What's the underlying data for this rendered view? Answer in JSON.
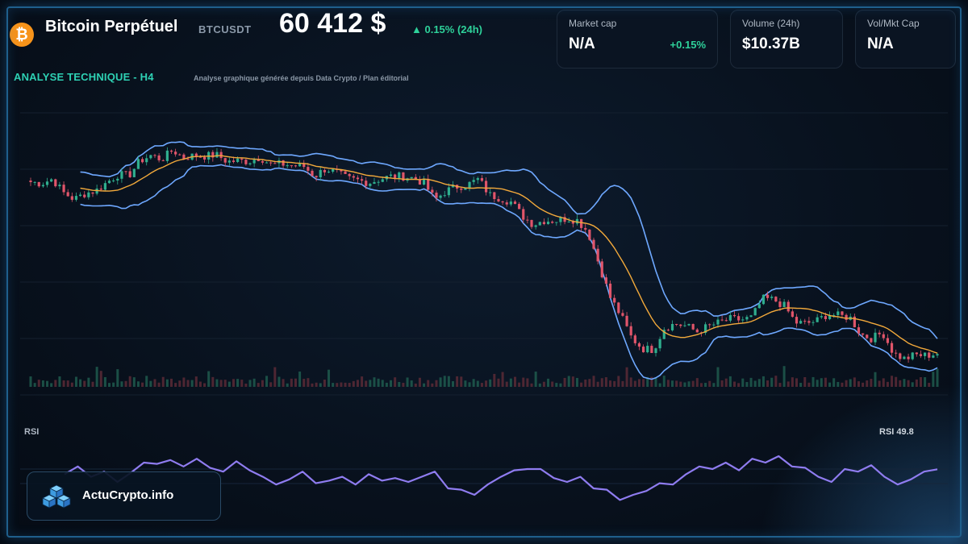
{
  "header": {
    "title": "Bitcoin Perpétuel",
    "ticker": "BTCUSDT",
    "price": "60 412 $",
    "change": "▲ 0.15% (24h)"
  },
  "cards": [
    {
      "label": "Market cap",
      "value": "N/A",
      "change": "+0.15%"
    },
    {
      "label": "Volume (24h)",
      "value": "$10.37B"
    },
    {
      "label": "Vol/Mkt Cap",
      "value": "N/A"
    }
  ],
  "section": {
    "title": "ANALYSE TECHNIQUE - H4",
    "subtitle": "Analyse graphique générée depuis Data Crypto / Plan éditorial"
  },
  "rsi": {
    "label": "RSI",
    "value_label": "RSI 49.8",
    "current": 49.8
  },
  "brand": {
    "name": "ActuCrypto.info"
  },
  "colors": {
    "up": "#2fae8e",
    "down": "#e0556a",
    "ma": "#f2a93b",
    "bands": "#6ea8ff",
    "rsi": "#8f7cf0",
    "accent": "#2ed19a",
    "btc": "#f7931a"
  },
  "icons": {
    "coin": "bitcoin-icon",
    "brand": "cube-stack-icon"
  },
  "chart_data": {
    "type": "line",
    "title": "ANALYSE TECHNIQUE - H4",
    "xlabel": "",
    "ylabel": "",
    "grid": true,
    "series": [
      {
        "name": "",
        "kind": "candlestick-trend",
        "values": [
          77.0,
          76.5,
          78.2,
          73.0,
          70.5,
          72.8,
          73.8,
          77.0,
          79.8,
          79.5,
          85.0,
          87.0,
          85.5,
          89.0,
          86.2,
          87.0,
          86.8,
          87.2,
          84.7,
          85.0,
          84.8,
          86.4,
          83.5,
          83.8,
          83.2,
          82.9,
          79.2,
          82.1,
          80.5,
          78.2,
          77.6,
          76.8,
          78.2,
          79.1,
          79.2,
          78.5,
          76.7,
          70.3,
          73.6,
          75.3,
          76.0,
          78.1,
          72.2,
          71.0,
          69.5,
          64.3,
          61.1,
          62.6,
          62.5,
          63.3,
          62.8,
          58.5,
          46.5,
          34.0,
          27.0,
          18.5,
          14.4,
          14.0,
          22.2,
          23.7,
          22.9,
          20.7,
          22.7,
          24.1,
          25.5,
          25.2,
          26.0,
          33.1,
          32.8,
          30.4,
          24.2,
          23.8,
          24.9,
          27.5,
          26.7,
          26.1,
          19.8,
          18.2,
          20.4,
          12.5,
          10.5,
          12.0,
          11.8,
          12.6
        ]
      },
      {
        "name": "",
        "kind": "rsi",
        "values": [
          46.0,
          52.0,
          44.0,
          48.0,
          40.0,
          47.0,
          55.0,
          54.0,
          57.0,
          52.0,
          58.0,
          51.0,
          48.0,
          56.0,
          49.0,
          44.0,
          38.0,
          42.0,
          48.0,
          39.0,
          41.0,
          44.0,
          38.0,
          46.0,
          41.0,
          43.0,
          40.0,
          44.0,
          48.0,
          35.0,
          34.0,
          30.0,
          38.0,
          44.0,
          49.0,
          50.0,
          50.0,
          43.0,
          40.0,
          44.0,
          35.0,
          34.0,
          26.0,
          30.0,
          33.0,
          39.0,
          38.0,
          46.0,
          52.0,
          50.0,
          55.0,
          49.0,
          58.0,
          55.0,
          60.0,
          52.0,
          51.0,
          44.0,
          40.0,
          50.0,
          48.0,
          53.0,
          44.0,
          38.0,
          42.0,
          48.0,
          49.8
        ]
      }
    ]
  }
}
